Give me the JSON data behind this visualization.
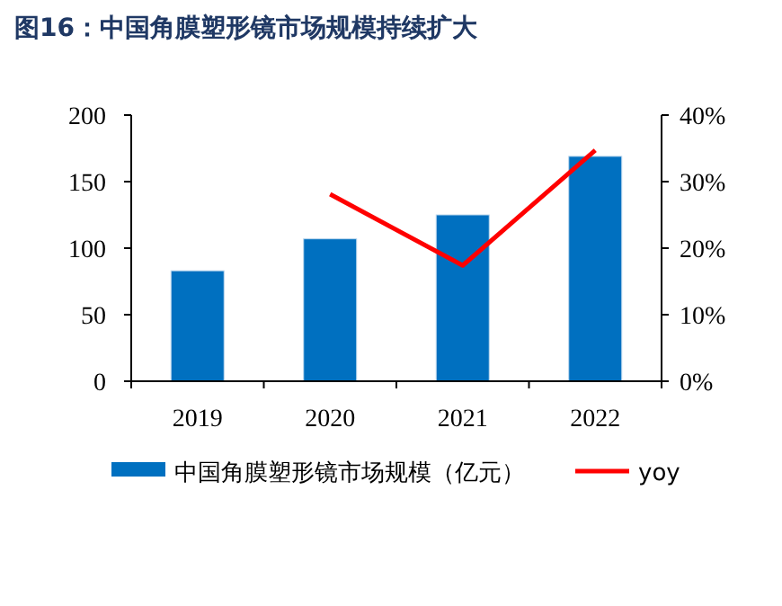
{
  "chart_data": {
    "type": "bar",
    "title": "图16：中国角膜塑形镜市场规模持续扩大",
    "categories": [
      "2019",
      "2020",
      "2021",
      "2022"
    ],
    "series": [
      {
        "name": "中国角膜塑形镜市场规模（亿元）",
        "color": "#0070c0",
        "values": [
          83,
          107,
          125,
          169
        ]
      },
      {
        "name": "yoy",
        "type": "line",
        "axis": "y2",
        "color": "#ff0000",
        "values": [
          null,
          28.1,
          17.4,
          34.7
        ]
      }
    ],
    "ylim": [
      0,
      200
    ],
    "yticks": [
      0,
      50,
      100,
      150,
      200
    ],
    "y2lim": [
      0,
      40
    ],
    "y2ticks": [
      {
        "value": 0,
        "label": "0%"
      },
      {
        "value": 10,
        "label": "10%"
      },
      {
        "value": 20,
        "label": "20%"
      },
      {
        "value": 30,
        "label": "30%"
      },
      {
        "value": 40,
        "label": "40%"
      }
    ],
    "grid": false,
    "legend": "bottom",
    "marker": "none",
    "line_style": "solid"
  }
}
